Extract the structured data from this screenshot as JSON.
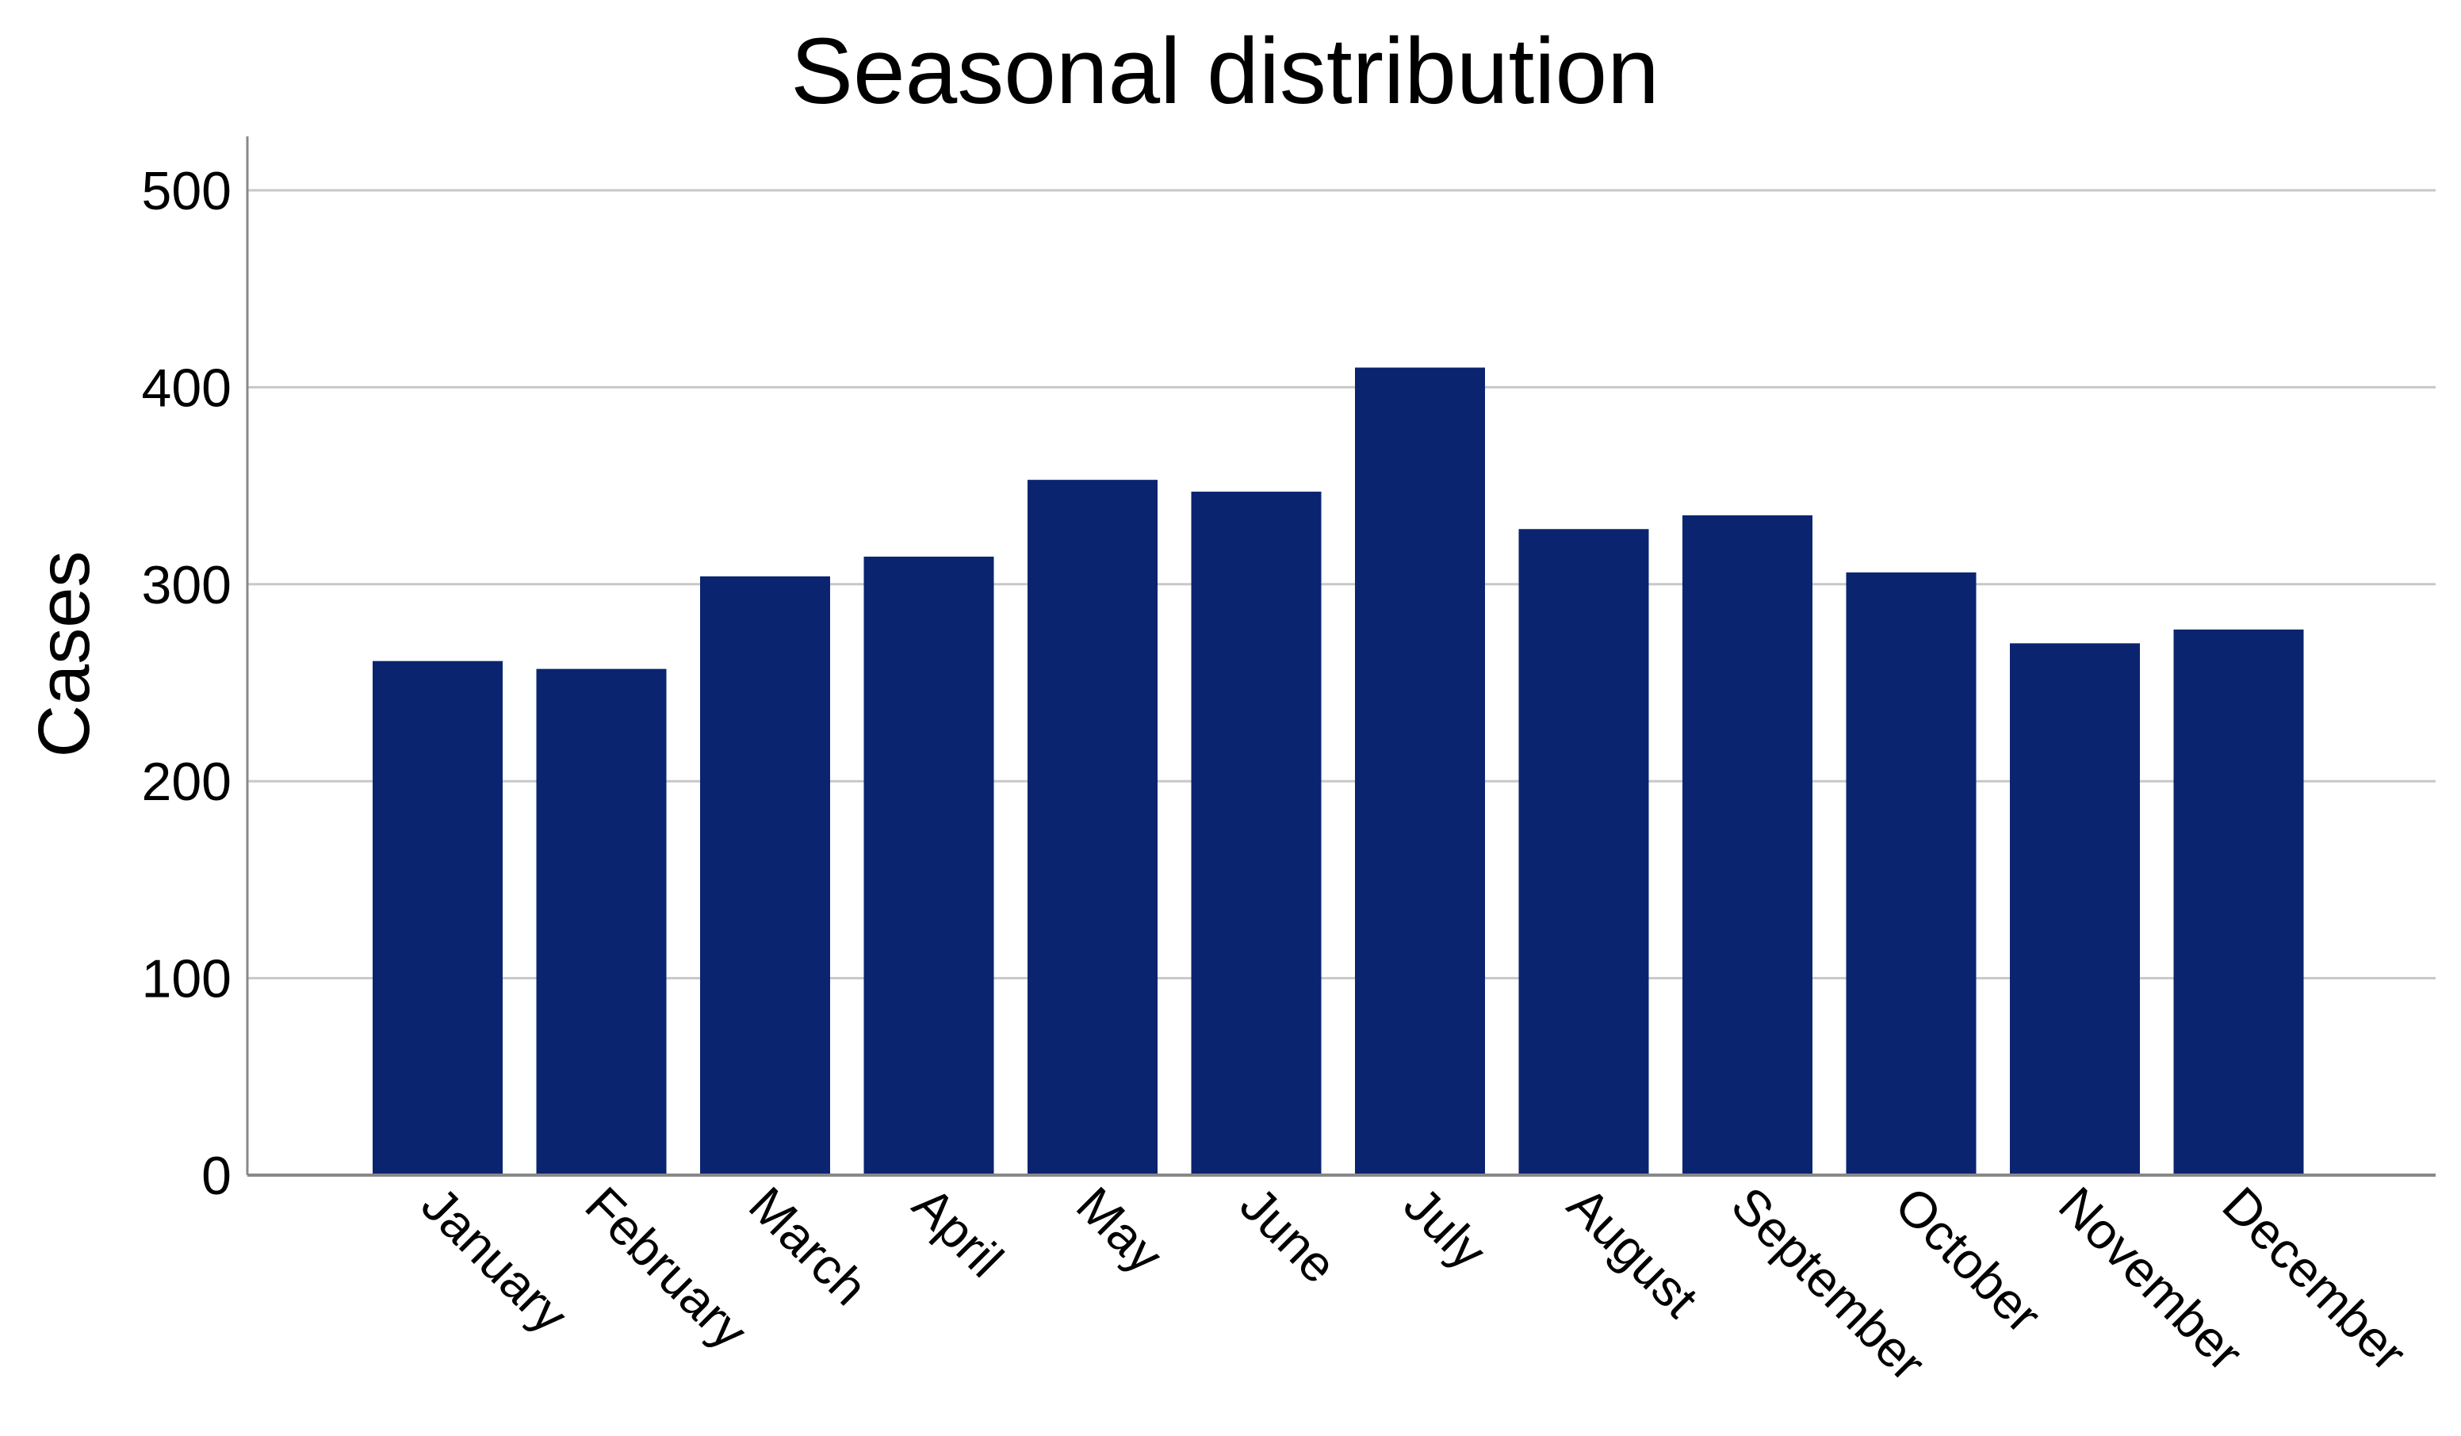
{
  "chart_data": {
    "type": "bar",
    "title": "Seasonal distribution",
    "ylabel": "Cases",
    "xlabel": "",
    "categories": [
      "January",
      "February",
      "March",
      "April",
      "May",
      "June",
      "July",
      "August",
      "September",
      "October",
      "November",
      "December"
    ],
    "values": [
      261,
      257,
      304,
      314,
      353,
      347,
      410,
      328,
      335,
      306,
      270,
      277
    ],
    "ylim": [
      0,
      525
    ],
    "yticks": [
      "0",
      "100",
      "200",
      "300",
      "400",
      "500"
    ],
    "grid": true,
    "legend": "none",
    "bar_color": "#0a2470",
    "grid_color": "#c8c8c8",
    "axis_color": "#888888"
  }
}
